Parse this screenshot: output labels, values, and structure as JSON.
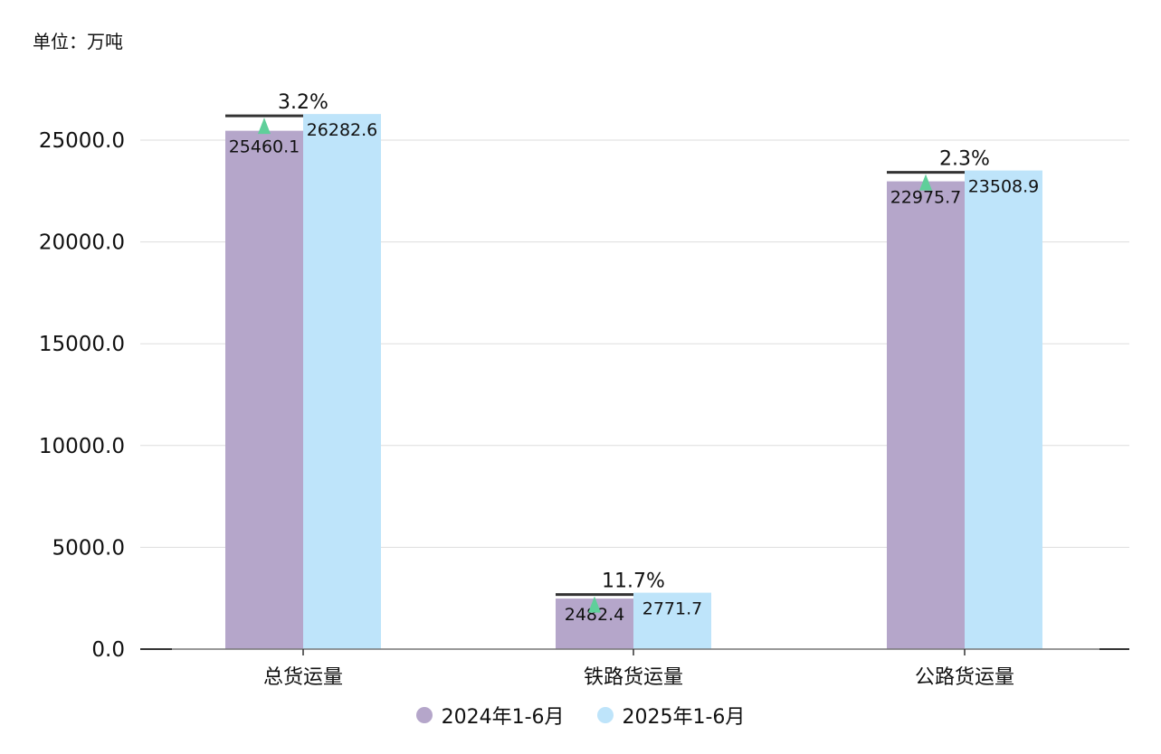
{
  "unit_label": "单位：万吨",
  "colors": {
    "series_2024": "#b5a6ca",
    "series_2025": "#bee4fa",
    "increase_arrow": "#5fcf9a",
    "grid": "#dddddd",
    "axis": "#333333"
  },
  "chart_data": {
    "type": "bar",
    "categories": [
      "总货运量",
      "铁路货运量",
      "公路货运量"
    ],
    "series": [
      {
        "name": "2024年1-6月",
        "values": [
          25460.1,
          2482.4,
          22975.7
        ],
        "labels": [
          "25460.1",
          "2482.4",
          "22975.7"
        ]
      },
      {
        "name": "2025年1-6月",
        "values": [
          26282.6,
          2771.7,
          23508.9
        ],
        "labels": [
          "26282.6",
          "2771.7",
          "23508.9"
        ]
      }
    ],
    "growth": [
      "3.2%",
      "11.7%",
      "2.3%"
    ],
    "y_ticks": [
      "0.0",
      "5000.0",
      "10000.0",
      "15000.0",
      "20000.0",
      "25000.0"
    ],
    "ylim": [
      0,
      27500
    ],
    "grid": true,
    "legend_position": "bottom"
  }
}
